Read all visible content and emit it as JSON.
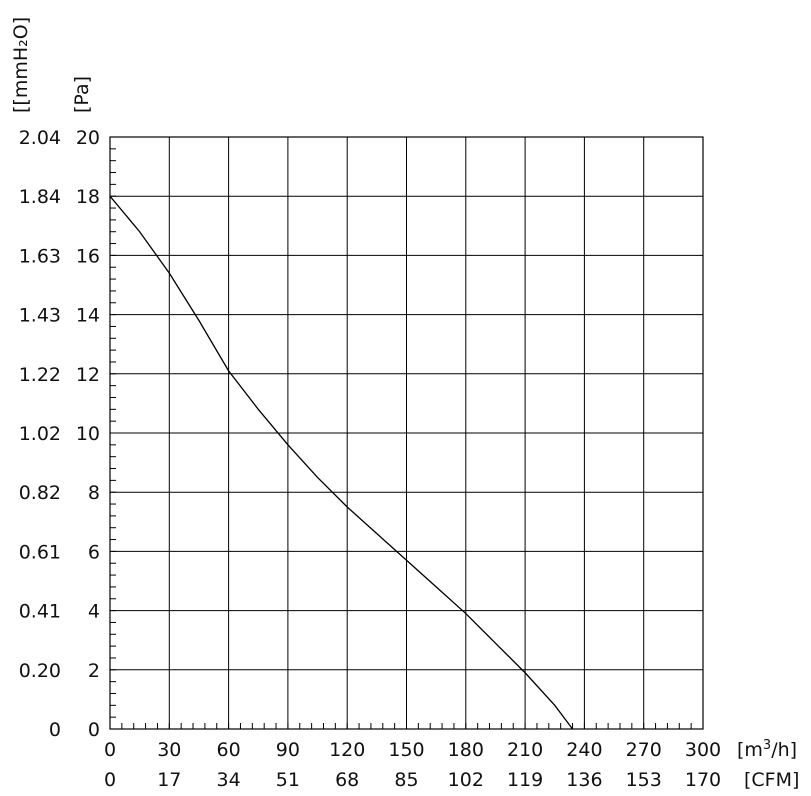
{
  "chart_data": {
    "type": "line",
    "x_units": "m³/h",
    "y_units": "Pa",
    "xlabel_primary": "[m3/h]",
    "xlabel_primary_parts": {
      "open": "[m",
      "sup": "3",
      "close": "/h]"
    },
    "xlabel_secondary": "[CFM]",
    "ylabel_primary": "[Pa]",
    "ylabel_secondary": "[[mmH₂O]",
    "xlim": [
      0,
      300
    ],
    "ylim": [
      0,
      20
    ],
    "x_ticks": [
      0,
      30,
      60,
      90,
      120,
      150,
      180,
      210,
      240,
      270,
      300
    ],
    "x_tick_labels": [
      "0",
      "30",
      "60",
      "90",
      "120",
      "150",
      "180",
      "210",
      "240",
      "270",
      "300"
    ],
    "x_secondary_tick_labels": [
      "0",
      "17",
      "34",
      "51",
      "68",
      "85",
      "102",
      "119",
      "136",
      "153",
      "170"
    ],
    "y_ticks": [
      0,
      2,
      4,
      6,
      8,
      10,
      12,
      14,
      16,
      18,
      20
    ],
    "y_tick_labels": [
      "0",
      "2",
      "4",
      "6",
      "8",
      "10",
      "12",
      "14",
      "16",
      "18",
      "20"
    ],
    "y_secondary_tick_labels": [
      "0",
      "0.20",
      "0.41",
      "0.61",
      "0.82",
      "1.02",
      "1.22",
      "1.43",
      "1.63",
      "1.84",
      "2.04"
    ],
    "grid": true,
    "legend": "none",
    "series": [
      {
        "x": [
          0,
          15,
          30,
          45,
          60,
          75,
          90,
          105,
          120,
          135,
          150,
          165,
          180,
          195,
          210,
          225,
          234
        ],
        "y": [
          18.0,
          16.8,
          15.4,
          13.8,
          12.1,
          10.8,
          9.6,
          8.5,
          7.5,
          6.6,
          5.7,
          4.8,
          3.9,
          2.9,
          1.9,
          0.8,
          0
        ]
      }
    ]
  }
}
